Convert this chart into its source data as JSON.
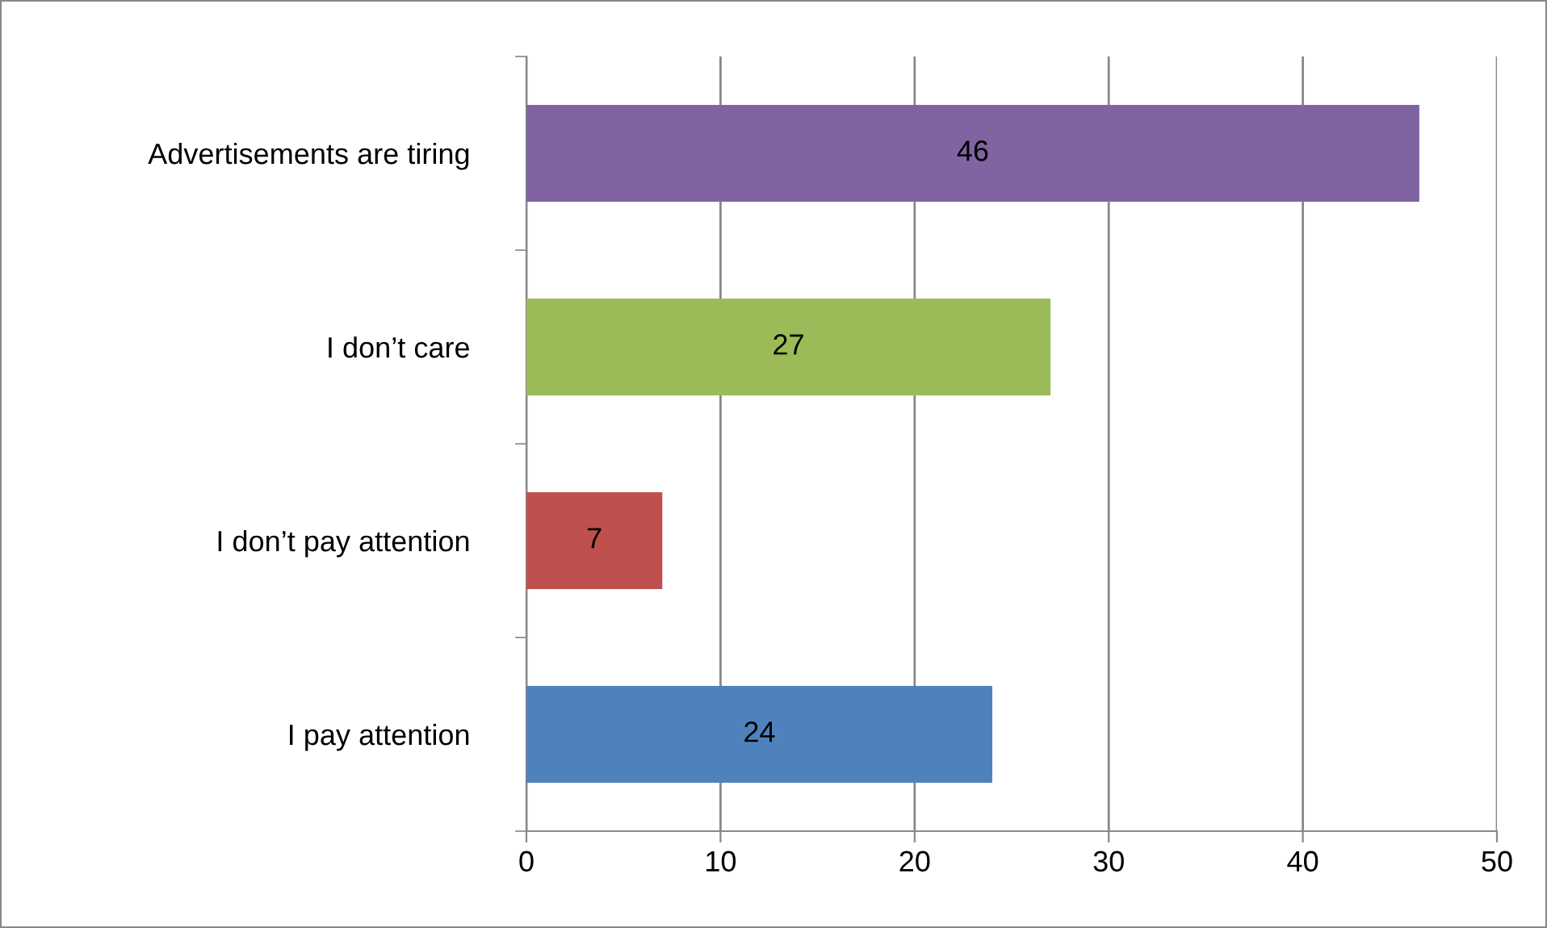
{
  "chart_data": {
    "type": "bar",
    "orientation": "horizontal",
    "categories": [
      "Advertisements are tiring",
      "I don’t care",
      "I don’t pay attention",
      "I pay attention"
    ],
    "values": [
      46,
      27,
      7,
      24
    ],
    "colors": [
      "#8064a2",
      "#9bbb59",
      "#c0504d",
      "#4f81bd"
    ],
    "xlim": [
      0,
      50
    ],
    "xticks": [
      0,
      10,
      20,
      30,
      40,
      50
    ],
    "grid": "x",
    "data_labels": true
  }
}
